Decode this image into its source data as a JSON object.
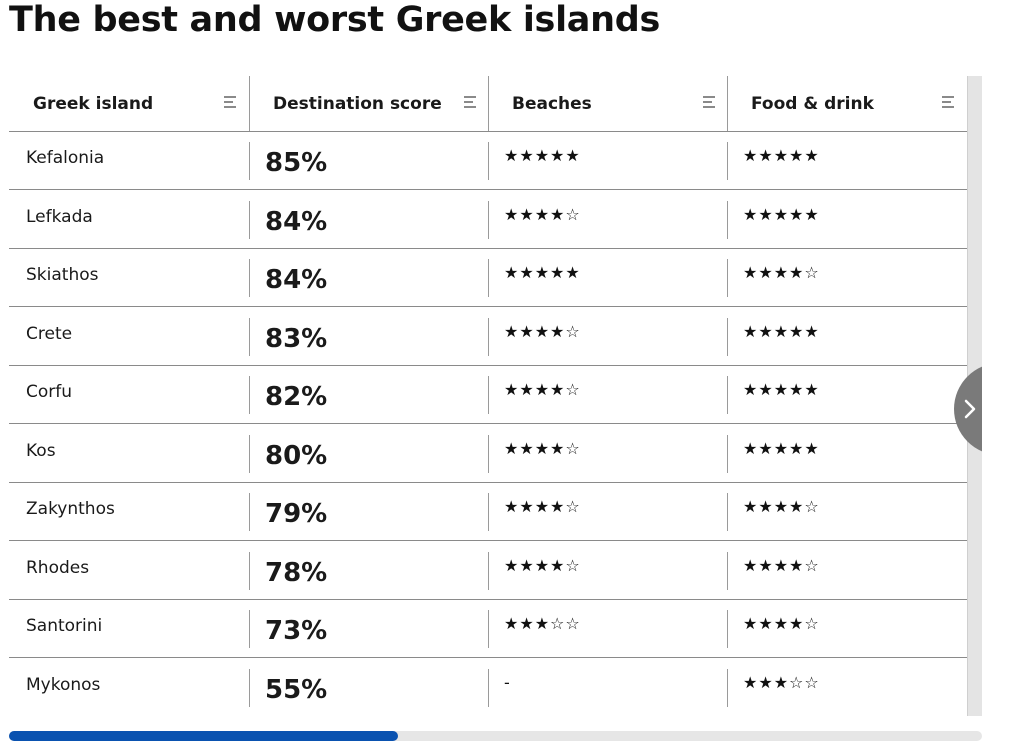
{
  "title": "The best and worst Greek islands",
  "colors": {
    "scrollbar_thumb": "#0a52b0",
    "scrollbar_track": "#e6e6e6",
    "next_button": "#7a7a7a"
  },
  "table": {
    "columns": [
      {
        "label": "Greek island",
        "icon": "sort-icon"
      },
      {
        "label": "Destination score",
        "icon": "sort-icon"
      },
      {
        "label": "Beaches",
        "icon": "sort-icon"
      },
      {
        "label": "Food & drink",
        "icon": "sort-icon"
      }
    ],
    "rows": [
      {
        "island": "Kefalonia",
        "score": "85%",
        "beaches": "★★★★★",
        "food": "★★★★★"
      },
      {
        "island": "Lefkada",
        "score": "84%",
        "beaches": "★★★★☆",
        "food": "★★★★★"
      },
      {
        "island": "Skiathos",
        "score": "84%",
        "beaches": "★★★★★",
        "food": "★★★★☆"
      },
      {
        "island": "Crete",
        "score": "83%",
        "beaches": "★★★★☆",
        "food": "★★★★★"
      },
      {
        "island": "Corfu",
        "score": "82%",
        "beaches": "★★★★☆",
        "food": "★★★★★"
      },
      {
        "island": "Kos",
        "score": "80%",
        "beaches": "★★★★☆",
        "food": "★★★★★"
      },
      {
        "island": "Zakynthos",
        "score": "79%",
        "beaches": "★★★★☆",
        "food": "★★★★☆"
      },
      {
        "island": "Rhodes",
        "score": "78%",
        "beaches": "★★★★☆",
        "food": "★★★★☆"
      },
      {
        "island": "Santorini",
        "score": "73%",
        "beaches": "★★★☆☆",
        "food": "★★★★☆"
      },
      {
        "island": "Mykonos",
        "score": "55%",
        "beaches": "-",
        "food": "★★★☆☆"
      }
    ]
  },
  "next_button": {
    "icon": "chevron-right-icon"
  },
  "scrollbar": {
    "position_fraction": 0.4
  }
}
